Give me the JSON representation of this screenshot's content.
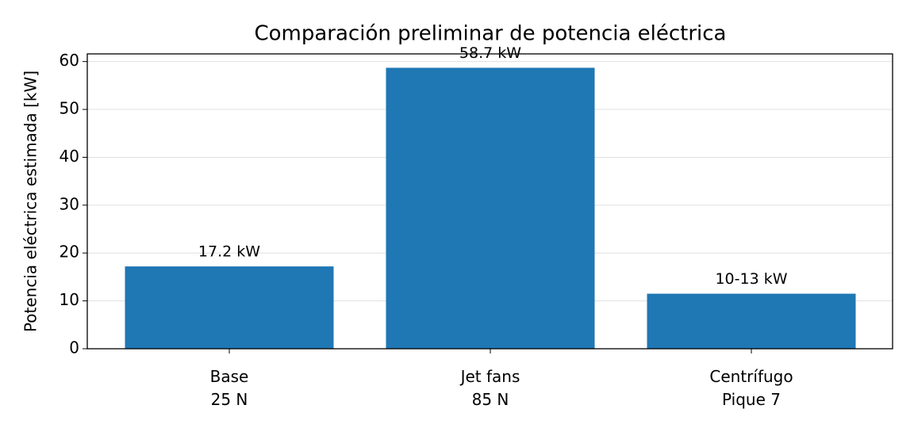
{
  "chart_data": {
    "type": "bar",
    "title": "Comparación preliminar de potencia eléctrica",
    "y_label": "Potencia eléctrica estimada [kW]",
    "categories": [
      "Base\n25 N",
      "Jet fans\n85 N",
      "Centrífugo\nPique 7"
    ],
    "values": [
      17.2,
      58.7,
      11.5
    ],
    "value_labels": [
      "17.2 kW",
      "58.7 kW",
      "10-13 kW"
    ],
    "color": "#1f77b4",
    "ylim": [
      0,
      61.6
    ],
    "yticks": [
      0,
      10,
      20,
      30,
      40,
      50,
      60
    ],
    "grid": true
  }
}
